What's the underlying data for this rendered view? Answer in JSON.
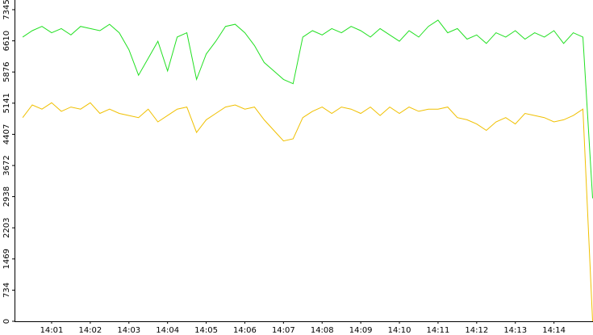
{
  "chart_data": {
    "type": "line",
    "x": [
      0.25,
      0.5,
      0.75,
      1.0,
      1.25,
      1.5,
      1.75,
      2.0,
      2.25,
      2.5,
      2.75,
      3.0,
      3.25,
      3.5,
      3.75,
      4.0,
      4.25,
      4.5,
      4.75,
      5.0,
      5.25,
      5.5,
      5.75,
      6.0,
      6.25,
      6.5,
      6.75,
      7.0,
      7.25,
      7.5,
      7.75,
      8.0,
      8.25,
      8.5,
      8.75,
      9.0,
      9.25,
      9.5,
      9.75,
      10.0,
      10.25,
      10.5,
      10.75,
      11.0,
      11.25,
      11.5,
      11.75,
      12.0,
      12.25,
      12.5,
      12.75,
      13.0,
      13.25,
      13.5,
      13.75,
      14.0,
      14.25,
      14.5,
      14.75,
      15.0
    ],
    "series": [
      {
        "color": "#22e022",
        "values": [
          6700,
          6850,
          6950,
          6800,
          6900,
          6750,
          6950,
          6900,
          6850,
          7000,
          6800,
          6400,
          5800,
          6200,
          6600,
          5900,
          6700,
          6800,
          5700,
          6300,
          6600,
          6950,
          7000,
          6800,
          6500,
          6100,
          5900,
          5700,
          5600,
          6700,
          6850,
          6750,
          6900,
          6800,
          6950,
          6850,
          6700,
          6900,
          6750,
          6600,
          6850,
          6700,
          6950,
          7100,
          6800,
          6900,
          6650,
          6750,
          6550,
          6800,
          6700,
          6850,
          6650,
          6800,
          6700,
          6850,
          6550,
          6800,
          6700,
          2900
        ]
      },
      {
        "color": "#f0c000",
        "values": [
          4800,
          5100,
          5000,
          5150,
          4950,
          5050,
          5000,
          5150,
          4900,
          5000,
          4900,
          4850,
          4800,
          5000,
          4700,
          4850,
          5000,
          5050,
          4450,
          4750,
          4900,
          5050,
          5100,
          5000,
          5050,
          4750,
          4500,
          4250,
          4300,
          4800,
          4950,
          5050,
          4900,
          5050,
          5000,
          4900,
          5050,
          4850,
          5050,
          4900,
          5050,
          4950,
          5000,
          5000,
          5050,
          4800,
          4750,
          4650,
          4500,
          4700,
          4800,
          4650,
          4900,
          4850,
          4800,
          4700,
          4750,
          4850,
          5000,
          0
        ]
      }
    ],
    "xlim": [
      0.04,
      15.01
    ],
    "xticks": [
      {
        "value": 1,
        "label": "14:01"
      },
      {
        "value": 2,
        "label": "14:02"
      },
      {
        "value": 3,
        "label": "14:03"
      },
      {
        "value": 4,
        "label": "14:04"
      },
      {
        "value": 5,
        "label": "14:05"
      },
      {
        "value": 6,
        "label": "14:06"
      },
      {
        "value": 7,
        "label": "14:07"
      },
      {
        "value": 8,
        "label": "14:08"
      },
      {
        "value": 9,
        "label": "14:09"
      },
      {
        "value": 10,
        "label": "14:10"
      },
      {
        "value": 11,
        "label": "14:11"
      },
      {
        "value": 12,
        "label": "14:12"
      },
      {
        "value": 13,
        "label": "14:13"
      },
      {
        "value": 14,
        "label": "14:14"
      }
    ],
    "ylim": [
      0,
      7573
    ],
    "yticks": [
      0,
      734,
      1469,
      2203,
      2938,
      3672,
      4407,
      5141,
      5876,
      6610,
      7345
    ],
    "grid": false
  }
}
